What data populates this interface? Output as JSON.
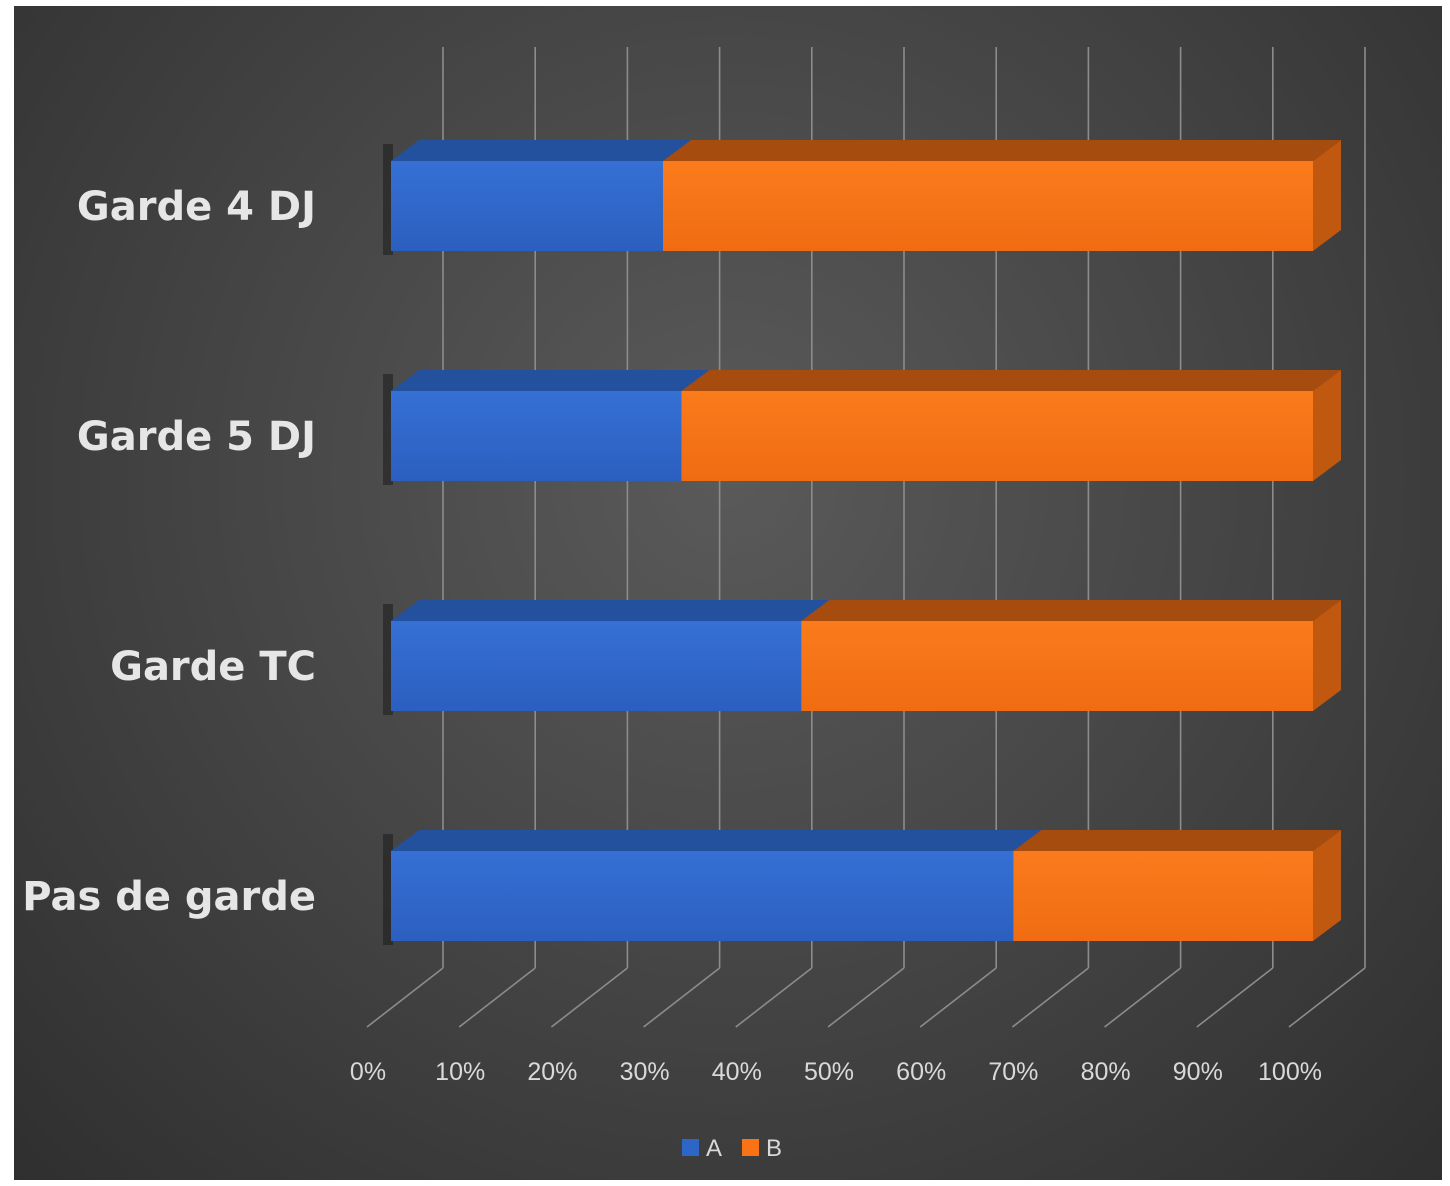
{
  "chart_data": {
    "type": "bar",
    "orientation": "horizontal",
    "stacking": "percent",
    "style": "3d",
    "categories": [
      "Garde 4 DJ",
      "Garde 5 DJ",
      "Garde TC",
      "Pas de garde"
    ],
    "series": [
      {
        "name": "A",
        "values": [
          29.5,
          31.5,
          44.5,
          67.5
        ],
        "color": "#2e66c8"
      },
      {
        "name": "B",
        "values": [
          70.5,
          68.5,
          55.5,
          32.5
        ],
        "color": "#f77316"
      }
    ],
    "x_ticks": [
      "0%",
      "10%",
      "20%",
      "30%",
      "40%",
      "50%",
      "60%",
      "70%",
      "80%",
      "90%",
      "100%"
    ],
    "xlim": [
      0,
      100
    ],
    "grid": true,
    "legend": "bottom",
    "background": "#474747"
  }
}
